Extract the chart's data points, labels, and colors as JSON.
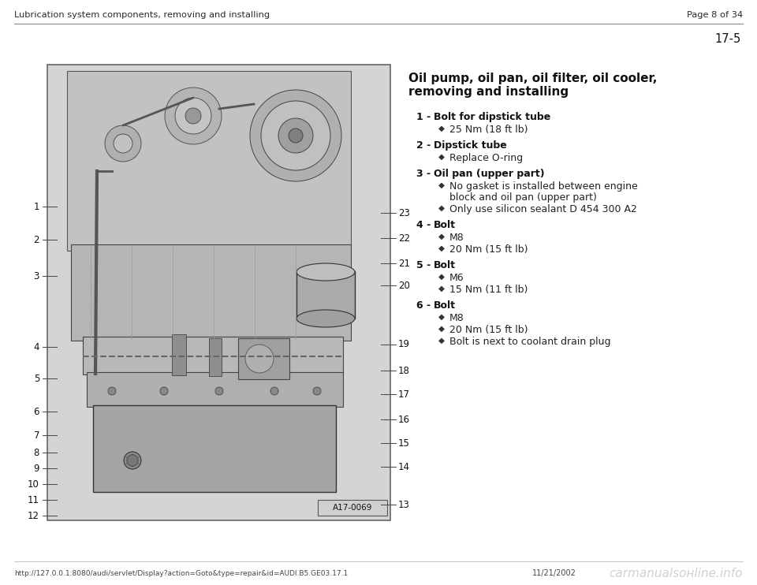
{
  "bg_color": "#ffffff",
  "page_bg": "#ffffff",
  "header_left": "Lubrication system components, removing and installing",
  "header_right": "Page 8 of 34",
  "page_number": "17-5",
  "section_title_line1": "Oil pump, oil pan, oil filter, oil cooler,",
  "section_title_line2": "removing and installing",
  "footer_left": "http://127.0.0.1:8080/audi/servlet/Display?action=Goto&type=repair&id=AUDI.B5.GE03.17.1",
  "footer_date": "11/21/2002",
  "footer_watermark": "carmanualsонline.info",
  "diagram_label": "A17-0069",
  "items": [
    {
      "number": "1",
      "bold_text": "Bolt for dipstick tube",
      "sub_items": [
        "25 Nm (18 ft lb)"
      ],
      "sub_wraps": [
        false
      ]
    },
    {
      "number": "2",
      "bold_text": "Dipstick tube",
      "sub_items": [
        "Replace O-ring"
      ],
      "sub_wraps": [
        false
      ]
    },
    {
      "number": "3",
      "bold_text": "Oil pan (upper part)",
      "sub_items": [
        "No gasket is installed between engine block and oil pan (upper part)",
        "Only use silicon sealant D 454 300 A2"
      ],
      "sub_wraps": [
        true,
        false
      ]
    },
    {
      "number": "4",
      "bold_text": "Bolt",
      "sub_items": [
        "M8",
        "20 Nm (15 ft lb)"
      ],
      "sub_wraps": [
        false,
        false
      ]
    },
    {
      "number": "5",
      "bold_text": "Bolt",
      "sub_items": [
        "M6",
        "15 Nm (11 ft lb)"
      ],
      "sub_wraps": [
        false,
        false
      ]
    },
    {
      "number": "6",
      "bold_text": "Bolt",
      "sub_items": [
        "M8",
        "20 Nm (15 ft lb)",
        "Bolt is next to coolant drain plug"
      ],
      "sub_wraps": [
        false,
        false,
        false
      ]
    }
  ],
  "left_callouts": [
    1,
    2,
    3,
    4,
    5,
    6,
    7,
    8,
    9,
    10,
    11,
    12
  ],
  "right_callouts": [
    23,
    22,
    21,
    20,
    19,
    18,
    17,
    16,
    15,
    14,
    13
  ]
}
